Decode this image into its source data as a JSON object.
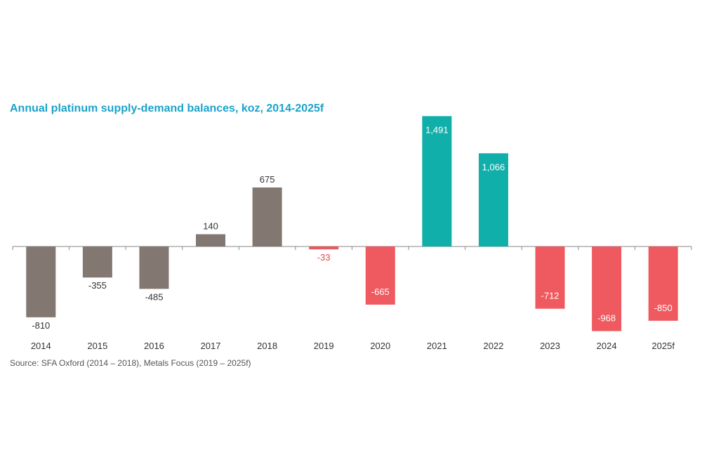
{
  "chart_data": {
    "type": "bar",
    "title": "Annual platinum supply-demand balances, koz, 2014-2025f",
    "xlabel": "",
    "ylabel": "",
    "ylim": [
      -1000,
      1500
    ],
    "grid": false,
    "categories": [
      "2014",
      "2015",
      "2016",
      "2017",
      "2018",
      "2019",
      "2020",
      "2021",
      "2022",
      "2023",
      "2024",
      "2025f"
    ],
    "values": [
      -810,
      -355,
      -485,
      140,
      675,
      -33,
      -665,
      1491,
      1066,
      -712,
      -968,
      -850
    ],
    "value_labels": [
      "-810",
      "-355",
      "-485",
      "140",
      "675",
      "-33",
      "-665",
      "1,491",
      "1,066",
      "-712",
      "-968",
      "-850"
    ],
    "bar_colors": [
      "#827871",
      "#827871",
      "#827871",
      "#827871",
      "#827871",
      "#e85a5d",
      "#ee5a5f",
      "#11afa9",
      "#11afa9",
      "#ee5a5f",
      "#ee5a5f",
      "#ee5a5f"
    ],
    "label_colors": [
      "#333333",
      "#333333",
      "#333333",
      "#333333",
      "#333333",
      "#e04a4e",
      "#ffffff",
      "#ffffff",
      "#ffffff",
      "#ffffff",
      "#ffffff",
      "#ffffff"
    ],
    "source": "Source: SFA Oxford (2014 – 2018), Metals Focus (2019 – 2025f)"
  },
  "colors": {
    "title": "#1aa3c9",
    "axis": "#888888"
  }
}
